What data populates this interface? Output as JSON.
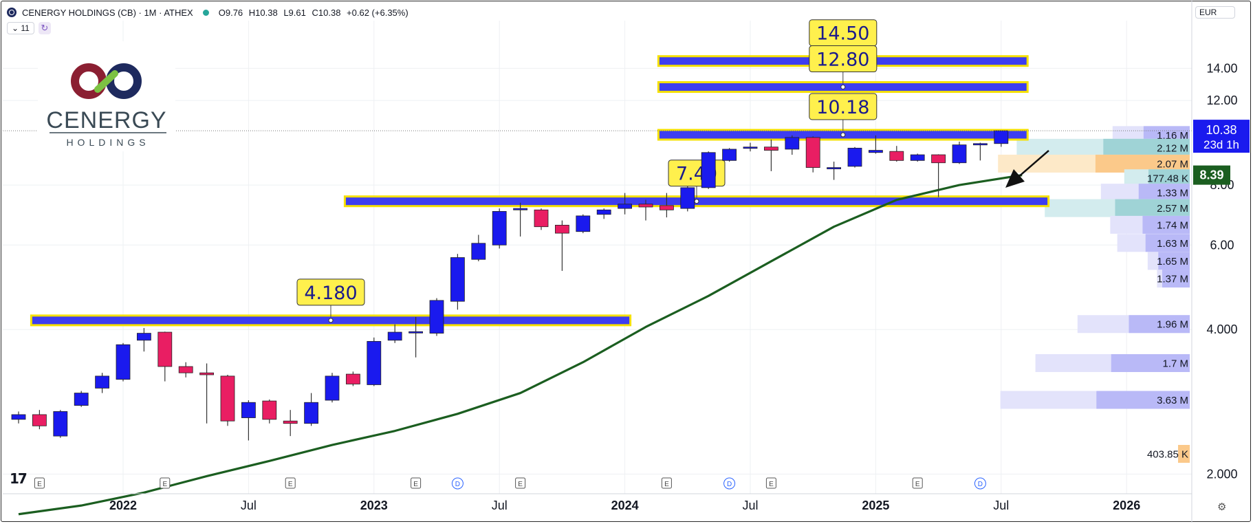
{
  "header": {
    "title": "CENERGY HOLDINGS (CB) · 1M · ATHEX",
    "open": "O9.76",
    "high": "H10.38",
    "low": "L9.61",
    "close": "C10.38",
    "change": "+0.62 (+6.35%)",
    "indicator_count": "11",
    "currency": "EUR"
  },
  "logo": {
    "name": "CENERGY",
    "sub": "HOLDINGS"
  },
  "colors": {
    "bull": "#1a1aee",
    "bear": "#e91e63",
    "level": "#3d3df0",
    "level_border": "#f5e000",
    "label_bg": "#fff04d",
    "ma": "#1b5e20",
    "price_tag": "#1a1aee",
    "ma_tag": "#1b5e20"
  },
  "chart_data": {
    "type": "candlestick",
    "title": "CENERGY HOLDINGS (CB) · 1M · ATHEX",
    "x_ticks": [
      "2022",
      "Jul",
      "2023",
      "Jul",
      "2024",
      "Jul",
      "2025",
      "Jul",
      "2026"
    ],
    "y_ticks": [
      "14.00",
      "12.00",
      "8.00",
      "6.00",
      "4.000",
      "2.000"
    ],
    "y_scale": "log",
    "y_range": [
      1.82,
      17.6
    ],
    "candles": [
      {
        "t": "2021-08",
        "o": 2.6,
        "h": 2.7,
        "l": 2.55,
        "c": 2.66
      },
      {
        "t": "2021-09",
        "o": 2.66,
        "h": 2.72,
        "l": 2.48,
        "c": 2.52
      },
      {
        "t": "2021-10",
        "o": 2.4,
        "h": 2.72,
        "l": 2.38,
        "c": 2.7
      },
      {
        "t": "2021-11",
        "o": 2.78,
        "h": 2.98,
        "l": 2.76,
        "c": 2.95
      },
      {
        "t": "2021-12",
        "o": 3.02,
        "h": 3.25,
        "l": 2.95,
        "c": 3.2
      },
      {
        "t": "2022-01",
        "o": 3.15,
        "h": 3.75,
        "l": 3.12,
        "c": 3.72
      },
      {
        "t": "2022-02",
        "o": 3.8,
        "h": 4.03,
        "l": 3.6,
        "c": 3.93
      },
      {
        "t": "2022-03",
        "o": 3.95,
        "h": 3.96,
        "l": 3.12,
        "c": 3.35
      },
      {
        "t": "2022-04",
        "o": 3.35,
        "h": 3.42,
        "l": 3.18,
        "c": 3.25
      },
      {
        "t": "2022-05",
        "o": 3.25,
        "h": 3.4,
        "l": 2.55,
        "c": 3.22
      },
      {
        "t": "2022-06",
        "o": 3.2,
        "h": 3.22,
        "l": 2.52,
        "c": 2.58
      },
      {
        "t": "2022-07",
        "o": 2.62,
        "h": 2.85,
        "l": 2.35,
        "c": 2.82
      },
      {
        "t": "2022-08",
        "o": 2.84,
        "h": 2.86,
        "l": 2.55,
        "c": 2.6
      },
      {
        "t": "2022-09",
        "o": 2.58,
        "h": 2.72,
        "l": 2.4,
        "c": 2.55
      },
      {
        "t": "2022-10",
        "o": 2.55,
        "h": 2.95,
        "l": 2.52,
        "c": 2.82
      },
      {
        "t": "2022-11",
        "o": 2.85,
        "h": 3.25,
        "l": 2.82,
        "c": 3.2
      },
      {
        "t": "2022-12",
        "o": 3.23,
        "h": 3.27,
        "l": 3.05,
        "c": 3.08
      },
      {
        "t": "2023-01",
        "o": 3.07,
        "h": 3.85,
        "l": 3.05,
        "c": 3.78
      },
      {
        "t": "2023-02",
        "o": 3.8,
        "h": 4.1,
        "l": 3.75,
        "c": 3.95
      },
      {
        "t": "2023-03",
        "o": 3.95,
        "h": 4.25,
        "l": 3.5,
        "c": 3.96
      },
      {
        "t": "2023-04",
        "o": 3.93,
        "h": 4.65,
        "l": 3.88,
        "c": 4.6
      },
      {
        "t": "2023-05",
        "o": 4.58,
        "h": 5.75,
        "l": 4.4,
        "c": 5.65
      },
      {
        "t": "2023-06",
        "o": 5.6,
        "h": 6.3,
        "l": 5.55,
        "c": 6.05
      },
      {
        "t": "2023-07",
        "o": 6.0,
        "h": 7.15,
        "l": 5.9,
        "c": 7.05
      },
      {
        "t": "2023-08",
        "o": 7.1,
        "h": 7.35,
        "l": 6.25,
        "c": 7.15
      },
      {
        "t": "2023-09",
        "o": 7.1,
        "h": 7.15,
        "l": 6.45,
        "c": 6.55
      },
      {
        "t": "2023-10",
        "o": 6.6,
        "h": 6.75,
        "l": 5.3,
        "c": 6.35
      },
      {
        "t": "2023-11",
        "o": 6.4,
        "h": 6.95,
        "l": 6.35,
        "c": 6.9
      },
      {
        "t": "2023-12",
        "o": 6.95,
        "h": 7.15,
        "l": 6.8,
        "c": 7.1
      },
      {
        "t": "2024-01",
        "o": 7.15,
        "h": 7.7,
        "l": 6.95,
        "c": 7.3
      },
      {
        "t": "2024-02",
        "o": 7.3,
        "h": 7.45,
        "l": 6.75,
        "c": 7.2
      },
      {
        "t": "2024-03",
        "o": 7.25,
        "h": 7.7,
        "l": 6.85,
        "c": 7.1
      },
      {
        "t": "2024-04",
        "o": 7.15,
        "h": 7.95,
        "l": 7.05,
        "c": 7.9
      },
      {
        "t": "2024-05",
        "o": 7.9,
        "h": 9.4,
        "l": 7.85,
        "c": 9.35
      },
      {
        "t": "2024-06",
        "o": 9.0,
        "h": 9.55,
        "l": 8.95,
        "c": 9.5
      },
      {
        "t": "2024-07",
        "o": 9.55,
        "h": 9.8,
        "l": 9.4,
        "c": 9.6
      },
      {
        "t": "2024-08",
        "o": 9.6,
        "h": 9.95,
        "l": 8.55,
        "c": 9.45
      },
      {
        "t": "2024-09",
        "o": 9.5,
        "h": 10.15,
        "l": 9.25,
        "c": 10.05
      },
      {
        "t": "2024-10",
        "o": 10.05,
        "h": 10.1,
        "l": 8.5,
        "c": 8.7
      },
      {
        "t": "2024-11",
        "o": 8.7,
        "h": 8.95,
        "l": 8.2,
        "c": 8.7
      },
      {
        "t": "2024-12",
        "o": 8.75,
        "h": 9.6,
        "l": 8.7,
        "c": 9.55
      },
      {
        "t": "2025-01",
        "o": 9.35,
        "h": 10.15,
        "l": 9.3,
        "c": 9.45
      },
      {
        "t": "2025-02",
        "o": 9.4,
        "h": 9.65,
        "l": 8.95,
        "c": 9.0
      },
      {
        "t": "2025-03",
        "o": 9.0,
        "h": 9.3,
        "l": 8.95,
        "c": 9.25
      },
      {
        "t": "2025-04",
        "o": 9.25,
        "h": 9.27,
        "l": 7.55,
        "c": 8.9
      },
      {
        "t": "2025-05",
        "o": 8.9,
        "h": 9.85,
        "l": 8.85,
        "c": 9.7
      },
      {
        "t": "2025-06",
        "o": 9.7,
        "h": 9.8,
        "l": 9.0,
        "c": 9.76
      },
      {
        "t": "2025-07",
        "o": 9.76,
        "h": 10.38,
        "l": 9.61,
        "c": 10.38
      }
    ],
    "moving_average": [
      {
        "t": "2021-08",
        "v": 1.65
      },
      {
        "t": "2021-11",
        "v": 1.72
      },
      {
        "t": "2022-02",
        "v": 1.83
      },
      {
        "t": "2022-05",
        "v": 1.98
      },
      {
        "t": "2022-08",
        "v": 2.13
      },
      {
        "t": "2022-11",
        "v": 2.3
      },
      {
        "t": "2023-02",
        "v": 2.46
      },
      {
        "t": "2023-05",
        "v": 2.67
      },
      {
        "t": "2023-08",
        "v": 2.95
      },
      {
        "t": "2023-11",
        "v": 3.42
      },
      {
        "t": "2024-02",
        "v": 4.05
      },
      {
        "t": "2024-05",
        "v": 4.7
      },
      {
        "t": "2024-08",
        "v": 5.55
      },
      {
        "t": "2024-11",
        "v": 6.55
      },
      {
        "t": "2025-02",
        "v": 7.45
      },
      {
        "t": "2025-05",
        "v": 8.0
      },
      {
        "t": "2025-08",
        "v": 8.39
      }
    ],
    "levels": [
      {
        "label": "14.50",
        "value": 14.5,
        "from": "2024-03",
        "to": "2025-08"
      },
      {
        "label": "12.80",
        "value": 12.8,
        "from": "2024-03",
        "to": "2025-08"
      },
      {
        "label": "10.18",
        "value": 10.18,
        "from": "2024-03",
        "to": "2025-08"
      },
      {
        "label": "7.40",
        "value": 7.4,
        "from": "2022-12",
        "to": "2025-09"
      },
      {
        "label": "4.180",
        "value": 4.18,
        "from": "2021-09",
        "to": "2024-01"
      }
    ],
    "volume_profile": [
      {
        "label": "1.16 M",
        "price": 10.15,
        "size": 0.33
      },
      {
        "label": "2.12 M",
        "price": 9.55,
        "size": 0.74
      },
      {
        "label": "2.07 M",
        "price": 8.85,
        "size": 0.82
      },
      {
        "label": "177.48 K",
        "price": 8.25,
        "size": 0.28
      },
      {
        "label": "1.33 M",
        "price": 7.7,
        "size": 0.38
      },
      {
        "label": "2.57 M",
        "price": 7.15,
        "size": 0.62
      },
      {
        "label": "1.74 M",
        "price": 6.6,
        "size": 0.34
      },
      {
        "label": "1.63 M",
        "price": 6.05,
        "size": 0.31
      },
      {
        "label": "1.65 M",
        "price": 5.55,
        "size": 0.18
      },
      {
        "label": "1.37 M",
        "price": 5.1,
        "size": 0.14
      },
      {
        "label": "1.96 M",
        "price": 4.1,
        "size": 0.48
      },
      {
        "label": "1.7 M",
        "price": 3.4,
        "size": 0.66
      },
      {
        "label": "3.63 M",
        "price": 2.85,
        "size": 0.81
      },
      {
        "label": "403.85 K",
        "price": 2.2,
        "size": 0.05
      }
    ],
    "events": [
      {
        "t": "2021-09",
        "k": "E"
      },
      {
        "t": "2022-03",
        "k": "E"
      },
      {
        "t": "2022-09",
        "k": "E"
      },
      {
        "t": "2023-03",
        "k": "E"
      },
      {
        "t": "2023-05",
        "k": "D"
      },
      {
        "t": "2023-08",
        "k": "E"
      },
      {
        "t": "2024-03",
        "k": "E"
      },
      {
        "t": "2024-06",
        "k": "D"
      },
      {
        "t": "2024-08",
        "k": "E"
      },
      {
        "t": "2025-03",
        "k": "E"
      },
      {
        "t": "2025-06",
        "k": "D"
      }
    ],
    "price_tag": {
      "value": "10.38",
      "countdown": "23d 1h"
    },
    "ma_tag": {
      "value": "8.39"
    }
  }
}
